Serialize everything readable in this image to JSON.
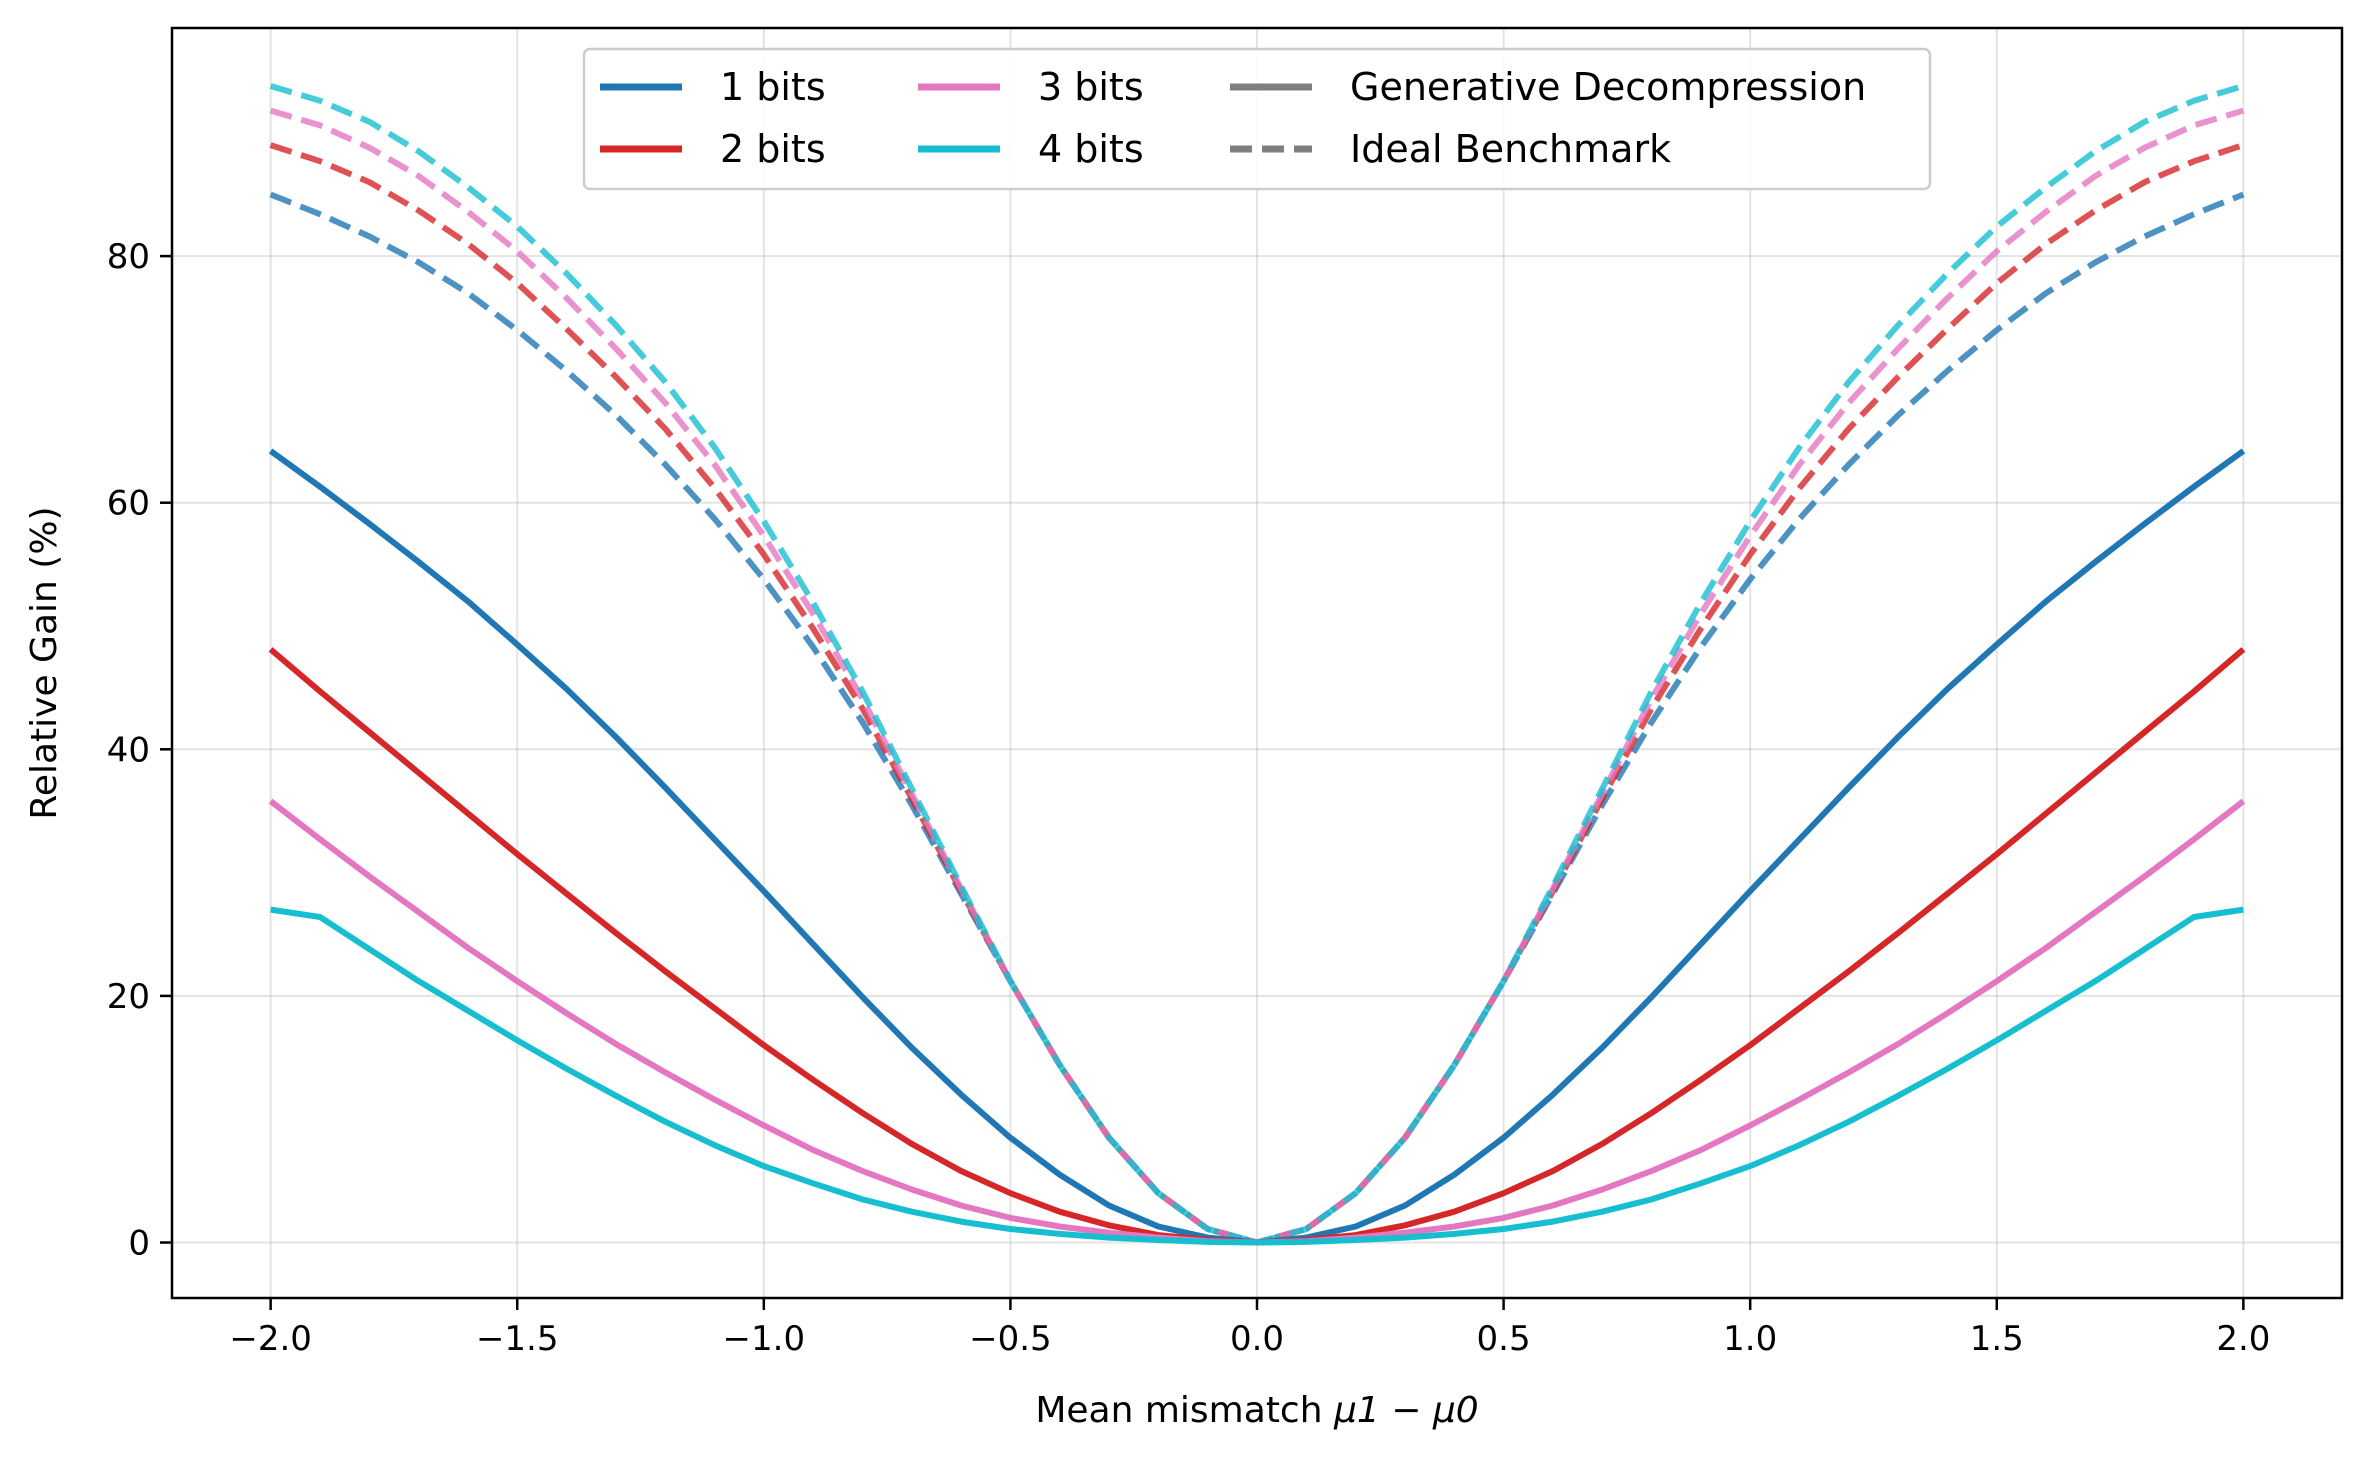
{
  "chart_data": {
    "type": "line",
    "title": "",
    "xlabel": "Mean mismatch",
    "xlabel_math": "μ1 − μ0",
    "ylabel": "Relative Gain (%)",
    "xlim": [
      -2.2,
      2.2
    ],
    "ylim": [
      -4.5,
      98.5
    ],
    "xticks": [
      -2.0,
      -1.5,
      -1.0,
      -0.5,
      0.0,
      0.5,
      1.0,
      1.5,
      2.0
    ],
    "xtick_labels": [
      "−2.0",
      "−1.5",
      "−1.0",
      "−0.5",
      "0.0",
      "0.5",
      "1.0",
      "1.5",
      "2.0"
    ],
    "yticks": [
      0,
      20,
      40,
      60,
      80
    ],
    "ytick_labels": [
      "0",
      "20",
      "40",
      "60",
      "80"
    ],
    "grid": true,
    "legend_position": "top-center",
    "legend": {
      "color_entries": [
        {
          "label": "1 bits",
          "color": "#1f77b4"
        },
        {
          "label": "2 bits",
          "color": "#d62728"
        },
        {
          "label": "3 bits",
          "color": "#e377c2"
        },
        {
          "label": "4 bits",
          "color": "#17becf"
        }
      ],
      "style_entries": [
        {
          "label": "Generative Decompression",
          "style": "solid",
          "color": "#7f7f7f"
        },
        {
          "label": "Ideal Benchmark",
          "style": "dashed",
          "color": "#7f7f7f"
        }
      ]
    },
    "x": [
      0.0,
      0.1,
      0.2,
      0.3,
      0.4,
      0.5,
      0.6,
      0.7,
      0.8,
      0.9,
      1.0,
      1.1,
      1.2,
      1.3,
      1.4,
      1.5,
      1.6,
      1.7,
      1.8,
      1.9,
      2.0
    ],
    "symmetric_about_zero": true,
    "series": [
      {
        "name": "1 bits",
        "style": "solid",
        "color": "#1f77b4",
        "values": [
          0,
          0.4,
          1.3,
          3.0,
          5.5,
          8.5,
          12.0,
          15.8,
          19.9,
          24.2,
          28.5,
          32.7,
          36.9,
          41.0,
          44.9,
          48.5,
          52.0,
          55.2,
          58.3,
          61.3,
          64.2
        ]
      },
      {
        "name": "2 bits",
        "style": "solid",
        "color": "#d62728",
        "values": [
          0,
          0.2,
          0.6,
          1.4,
          2.5,
          4.0,
          5.8,
          8.0,
          10.5,
          13.2,
          16.0,
          19.0,
          22.0,
          25.1,
          28.3,
          31.5,
          34.8,
          38.1,
          41.4,
          44.7,
          48.1
        ]
      },
      {
        "name": "3 bits",
        "style": "solid",
        "color": "#e377c2",
        "values": [
          0,
          0.1,
          0.4,
          0.8,
          1.3,
          2.0,
          3.0,
          4.3,
          5.8,
          7.5,
          9.5,
          11.6,
          13.8,
          16.1,
          18.6,
          21.2,
          23.9,
          26.8,
          29.7,
          32.7,
          35.8
        ]
      },
      {
        "name": "4 bits",
        "style": "solid",
        "color": "#17becf",
        "values": [
          0,
          0.05,
          0.2,
          0.4,
          0.7,
          1.1,
          1.7,
          2.5,
          3.5,
          4.8,
          6.2,
          7.9,
          9.8,
          11.9,
          14.1,
          16.4,
          18.8,
          21.2,
          23.8,
          26.4,
          27.0
        ]
      },
      {
        "name": "1 bits",
        "style": "dashed",
        "color": "#1f77b4",
        "values": [
          0,
          1.1,
          4.0,
          8.5,
          14.4,
          21.2,
          28.3,
          35.5,
          42.2,
          48.3,
          53.8,
          58.7,
          63.1,
          67.1,
          70.7,
          74.0,
          77.0,
          79.5,
          81.6,
          83.4,
          85.0
        ]
      },
      {
        "name": "2 bits",
        "style": "dashed",
        "color": "#d62728",
        "values": [
          0,
          1.1,
          4.0,
          8.5,
          14.4,
          21.2,
          28.5,
          36.0,
          43.3,
          49.8,
          55.8,
          61.2,
          66.0,
          70.2,
          74.1,
          77.8,
          81.0,
          83.7,
          86.0,
          87.7,
          89.0
        ]
      },
      {
        "name": "3 bits",
        "style": "dashed",
        "color": "#e377c2",
        "values": [
          0,
          1.1,
          4.0,
          8.5,
          14.4,
          21.2,
          28.7,
          36.4,
          44.1,
          51.0,
          57.3,
          63.1,
          68.1,
          72.5,
          76.6,
          80.4,
          83.6,
          86.5,
          88.8,
          90.6,
          91.8
        ]
      },
      {
        "name": "4 bits",
        "style": "dashed",
        "color": "#17becf",
        "values": [
          0,
          1.1,
          4.0,
          8.5,
          14.4,
          21.2,
          28.9,
          36.8,
          44.7,
          51.9,
          58.5,
          64.5,
          69.8,
          74.4,
          78.6,
          82.4,
          85.6,
          88.5,
          90.9,
          92.6,
          93.8
        ]
      }
    ]
  }
}
